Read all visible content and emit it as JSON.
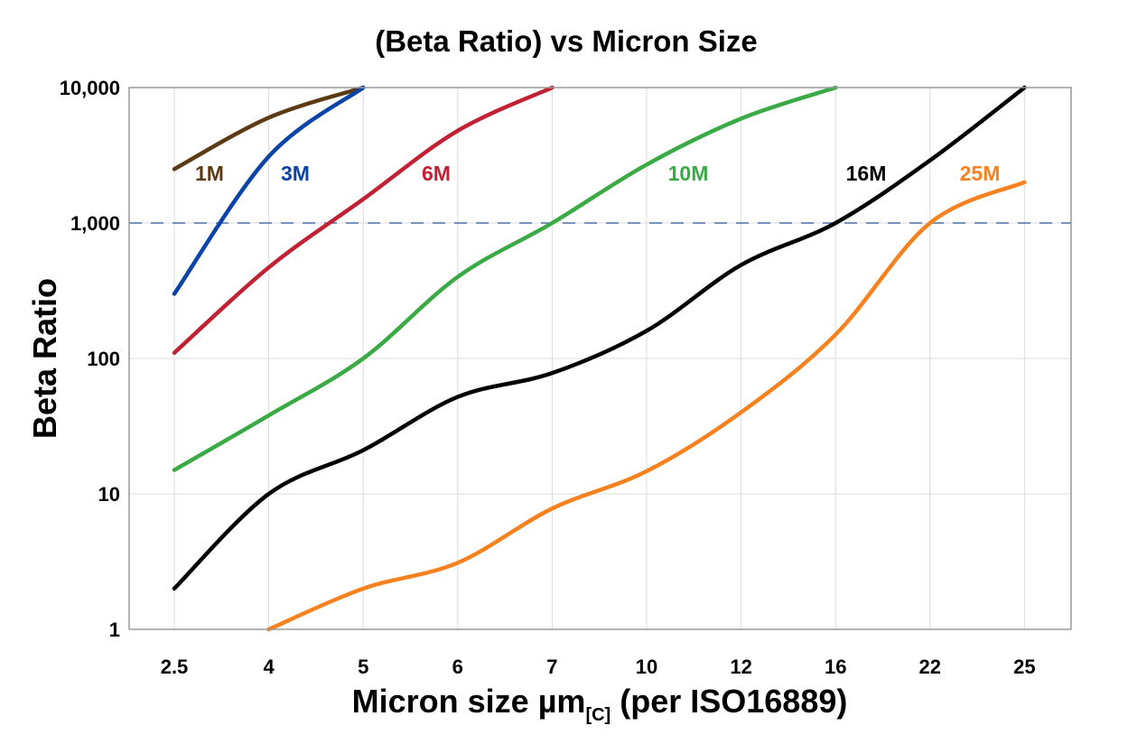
{
  "chart_data": {
    "type": "line",
    "title": "(Beta Ratio) vs Micron Size",
    "xlabel_main": "Micron size µm",
    "xlabel_sub": "[C]",
    "xlabel_tail": " (per ISO16889)",
    "ylabel": "Beta Ratio",
    "y_scale": "log",
    "ylim": [
      1,
      10000
    ],
    "y_ticks": [
      1,
      10,
      100,
      1000,
      10000
    ],
    "y_tick_labels": [
      "1",
      "10",
      "100",
      "1,000",
      "10,000"
    ],
    "categories": [
      "2.5",
      "4",
      "5",
      "6",
      "7",
      "10",
      "12",
      "16",
      "22",
      "25"
    ],
    "grid": true,
    "reference_line": {
      "y": 1000,
      "style": "dashed",
      "color": "#4a6fa5"
    },
    "series": [
      {
        "name": "1M",
        "color": "#5c3a14",
        "values": [
          2500,
          6000,
          10000,
          null,
          null,
          null,
          null,
          null,
          null,
          null
        ]
      },
      {
        "name": "3M",
        "color": "#0a44a8",
        "values": [
          300,
          3100,
          10000,
          null,
          null,
          null,
          null,
          null,
          null,
          null
        ]
      },
      {
        "name": "6M",
        "color": "#c22033",
        "values": [
          110,
          470,
          1500,
          4800,
          10000,
          null,
          null,
          null,
          null,
          null
        ]
      },
      {
        "name": "10M",
        "color": "#3aaa45",
        "values": [
          15,
          38,
          100,
          400,
          1000,
          2700,
          5900,
          10000,
          null,
          null
        ]
      },
      {
        "name": "16M",
        "color": "#000000",
        "values": [
          2,
          10,
          21,
          52,
          78,
          160,
          490,
          1000,
          2900,
          10000
        ]
      },
      {
        "name": "25M",
        "color": "#f5821f",
        "values": [
          null,
          1,
          2,
          3.1,
          7.8,
          14.7,
          40,
          150,
          1000,
          2000
        ]
      }
    ],
    "series_label_positions": [
      "near-start",
      "near-start",
      "upper-middle",
      "upper-middle",
      "upper-right",
      "upper-right"
    ]
  }
}
